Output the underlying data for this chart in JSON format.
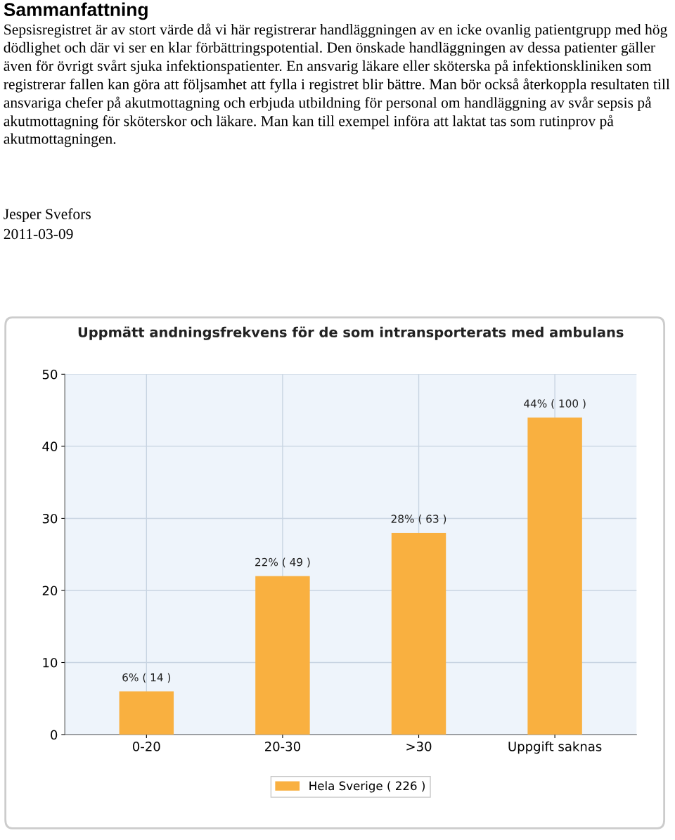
{
  "chart_data": {
    "type": "bar",
    "title": "Uppmätt andningsfrekvens för de som intransporterats med ambulans",
    "annotations": [
      "Sammanfattning",
      "Sepsisregistret är av stort värde då vi här registrerar handläggningen av en icke ovanlig patientgrupp med hög dödlighet och där vi ser en klar förbättringspotential. Den önskade handläggningen av dessa patienter gäller även för övrigt svårt sjuka infektionspatienter. En ansvarig läkare eller sköterska på infektionskliniken som registrerar fallen kan göra att följsamhet att fylla i registret blir bättre. Man bör också återkoppla resultaten till ansvariga chefer på akutmottagning och erbjuda utbildning för personal om handläggning av svår sepsis på akutmottagning för sköterskor och läkare. Man kan till exempel införa att laktat tas som rutinprov på akutmottagningen.",
      "Jesper Svefors",
      "2011-03-09"
    ],
    "categories": [
      "0-20",
      "20-30",
      ">30",
      "Uppgift saknas"
    ],
    "series": [
      {
        "name": "Hela Sverige ( 226 )",
        "color": "#f9b040",
        "values": [
          6,
          22,
          28,
          44
        ],
        "value_labels": [
          "6% ( 14 )",
          "22% ( 49 )",
          "28% ( 63 )",
          "44% ( 100 )"
        ]
      }
    ],
    "ylim": [
      0,
      50
    ],
    "yticks": [
      0,
      10,
      20,
      30,
      40,
      50
    ],
    "grid": true,
    "legend": "bottom"
  }
}
